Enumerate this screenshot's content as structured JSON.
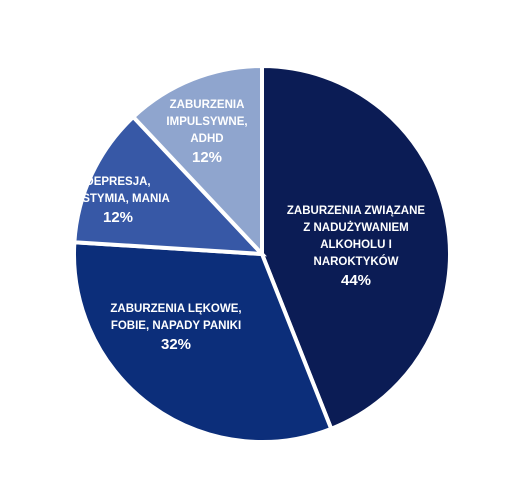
{
  "chart_data": {
    "type": "pie",
    "title": "",
    "start_angle_deg": 0,
    "direction": "clockwise",
    "legend": "none",
    "slices": [
      {
        "name": "ZABURZENIA ZWIĄZANE Z NADUŻYWANIEM ALKOHOLU I NAROKTYKÓW",
        "label_lines": [
          "ZABURZENIA ZWIĄZANE",
          "Z NADUŻYWANIEM",
          "ALKOHOLU I",
          "NAROKTYKÓW"
        ],
        "value": 44,
        "value_label": "44%",
        "color": "#0B1C55"
      },
      {
        "name": "ZABURZENIA LĘKOWE, FOBIE, NAPADY PANIKI",
        "label_lines": [
          "ZABURZENIA LĘKOWE,",
          "FOBIE, NAPADY PANIKI"
        ],
        "value": 32,
        "value_label": "32%",
        "color": "#0C2E7A"
      },
      {
        "name": "DEPRESJA, DYSTYMIA, MANIA",
        "label_lines": [
          "DEPRESJA,",
          "DYSTYMIA, MANIA"
        ],
        "value": 12,
        "value_label": "12%",
        "color": "#3758A6"
      },
      {
        "name": "ZABURZENIA IMPULSYWNE, ADHD",
        "label_lines": [
          "ZABURZENIA",
          "IMPULSYWNE,",
          "ADHD"
        ],
        "value": 12,
        "value_label": "12%",
        "color": "#8FA5CE"
      }
    ]
  }
}
